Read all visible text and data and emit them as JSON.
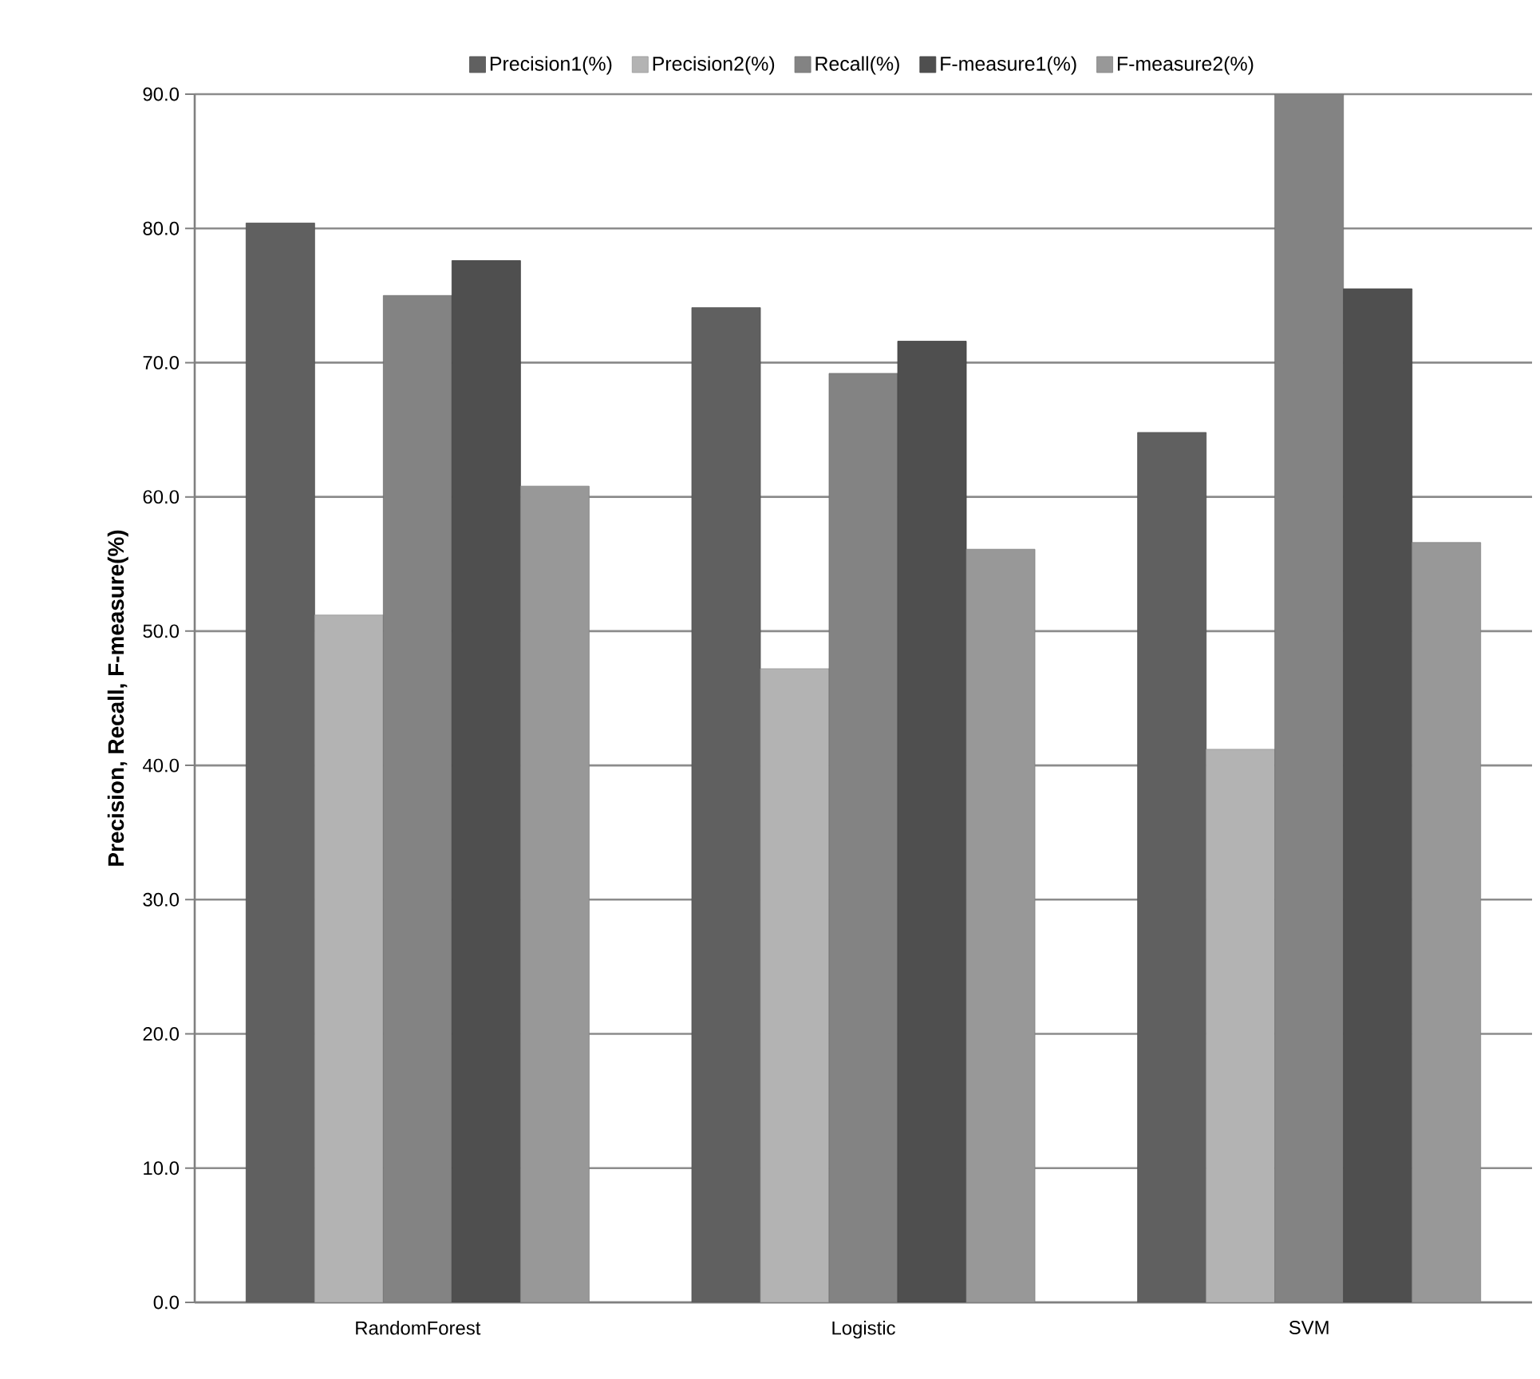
{
  "chart_data": {
    "type": "bar",
    "ylabel": "**Precision, Recall, F-measure(%)**",
    "categories": [
      "RandomForest",
      "Logistic",
      "SVM"
    ],
    "series": [
      {
        "name": "Precision1(%)",
        "color": "#606060",
        "values": [
          80.4,
          74.1,
          64.8
        ]
      },
      {
        "name": "Precision2(%)",
        "color": "#b3b3b3",
        "values": [
          51.2,
          47.2,
          41.2
        ]
      },
      {
        "name": "Recall(%)",
        "color": "#838383",
        "values": [
          75.0,
          69.2,
          90.0
        ]
      },
      {
        "name": "F-measure1(%)",
        "color": "#4f4f4f",
        "values": [
          77.6,
          71.6,
          75.5
        ]
      },
      {
        "name": "F-measure2(%)",
        "color": "#989898",
        "values": [
          60.8,
          56.1,
          56.6
        ]
      }
    ],
    "ylim": [
      0,
      90
    ],
    "yticks": [
      {
        "value": 0,
        "label": "0.0"
      },
      {
        "value": 10,
        "label": "10.0"
      },
      {
        "value": 20,
        "label": "20.0"
      },
      {
        "value": 30,
        "label": "30.0"
      },
      {
        "value": 40,
        "label": "40.0"
      },
      {
        "value": 50,
        "label": "50.0"
      },
      {
        "value": 60,
        "label": "60.0"
      },
      {
        "value": 70,
        "label": "70.0"
      },
      {
        "value": 80,
        "label": "80.0"
      },
      {
        "value": 90,
        "label": "90.0"
      }
    ],
    "grid": "y",
    "legend": "top"
  }
}
